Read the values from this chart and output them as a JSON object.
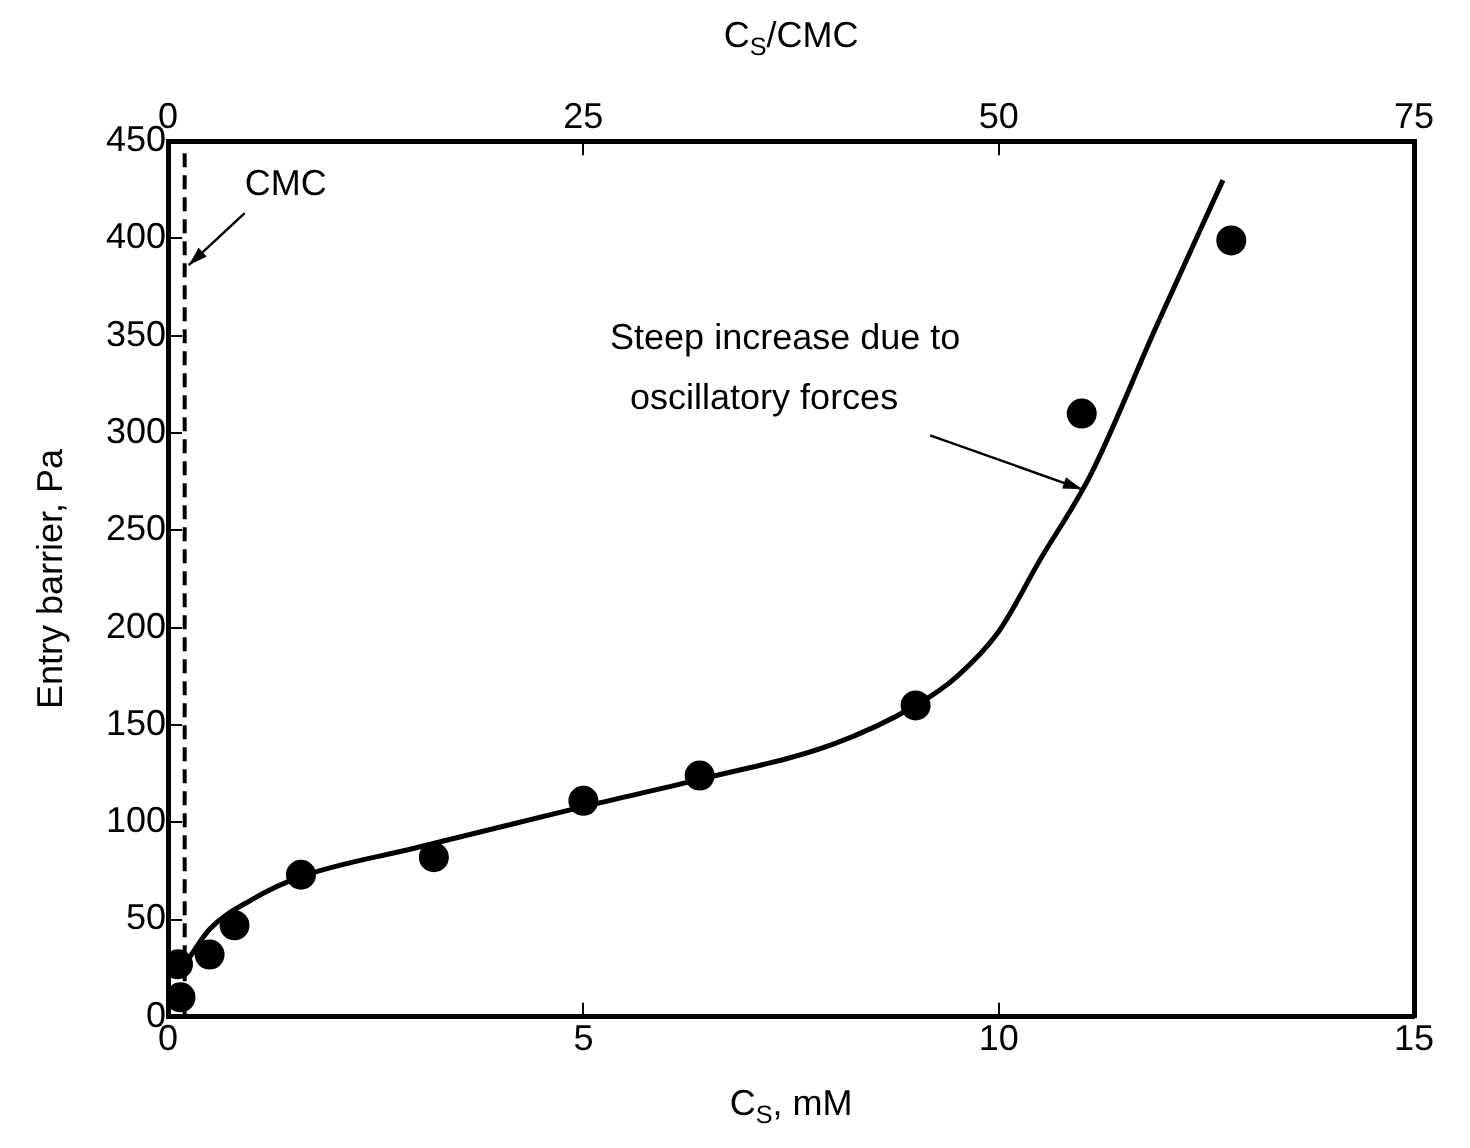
{
  "chart_data": {
    "type": "scatter",
    "xlabel": "C$_{S}$, mM",
    "ylabel": "Entry barrier, Pa",
    "x2label": "C$_{S}$/CMC",
    "xlim": [
      0,
      15
    ],
    "xticks": [
      0,
      5,
      10,
      15
    ],
    "ylim": [
      0,
      450
    ],
    "yticks": [
      0,
      50,
      100,
      150,
      200,
      250,
      300,
      350,
      400,
      450
    ],
    "x2lim": [
      0,
      75
    ],
    "x2ticks": [
      0,
      25,
      50,
      75
    ],
    "grid": false,
    "legend": false,
    "marker": "circle",
    "series": [
      {
        "color": "#000000",
        "x": [
          0.15,
          0.12,
          0.5,
          0.8,
          1.6,
          3.2,
          5.0,
          6.4,
          9.0,
          11.0,
          12.8
        ],
        "values": [
          10,
          27,
          32,
          47,
          73,
          82,
          111,
          124,
          160,
          310,
          399
        ]
      },
      {
        "type": "line",
        "color": "#000000",
        "marker": "none",
        "line_style": "solid",
        "x": [
          0.25,
          0.5,
          1,
          1.6,
          3,
          5,
          6.4,
          8,
          9,
          9.5,
          10,
          10.5,
          11.1,
          11.9,
          12.7
        ],
        "values": [
          30,
          45,
          60,
          72,
          87,
          108,
          122,
          140,
          160,
          175,
          198,
          235,
          278,
          355,
          430
        ]
      }
    ],
    "ref_lines": [
      {
        "axis": "x",
        "value": 0.2,
        "label": "CMC",
        "line_style": "dashed",
        "color": "#000000"
      }
    ],
    "annotations": [
      {
        "text": "Steep increase due to oscillatory forces",
        "x": 11.1,
        "y": 268
      }
    ]
  }
}
